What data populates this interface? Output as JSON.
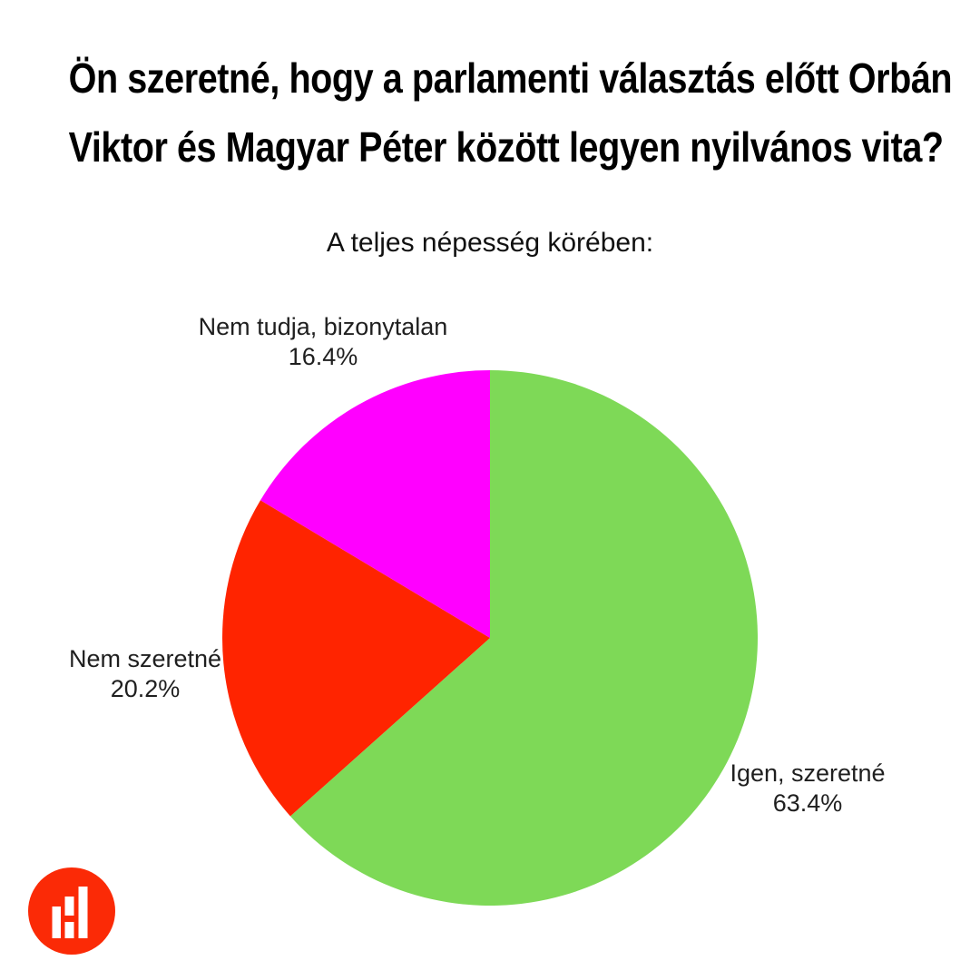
{
  "page": {
    "background": "#FFFFFF"
  },
  "title": {
    "lines": [
      "Ön szeretné, hogy a parlamenti választás előtt Orbán",
      "Viktor és Magyar Péter között legyen nyilvános vita?"
    ],
    "full_text": "Ön szeretné, hogy a parlamenti választás előtt Orbán Viktor és Magyar Péter között legyen nyilvános vita?"
  },
  "subtitle": "A teljes népesség körében:",
  "chart_data": {
    "type": "pie",
    "title": "A teljes népesség körében:",
    "categories": [
      "Igen, szeretné",
      "Nem szeretné",
      "Nem tudja, bizonytalan"
    ],
    "values": [
      63.4,
      20.2,
      16.4
    ],
    "unit": "%",
    "colors": [
      "#7ED957",
      "#FF2400",
      "#FF00FF"
    ],
    "start_angle": "12-oclock",
    "direction": "clockwise",
    "legend": "none",
    "labels": [
      {
        "name": "Igen, szeretné",
        "value_text": "63.4%"
      },
      {
        "name": "Nem szeretné",
        "value_text": "20.2%"
      },
      {
        "name": "Nem tudja, bizonytalan",
        "value_text": "16.4%"
      }
    ]
  },
  "logo": {
    "name": "bar-chart-logo",
    "circle_color": "#FB2A06",
    "bar_color": "#FFFFFF"
  },
  "text_color": "#000000",
  "label_color": "#1F1F1F"
}
